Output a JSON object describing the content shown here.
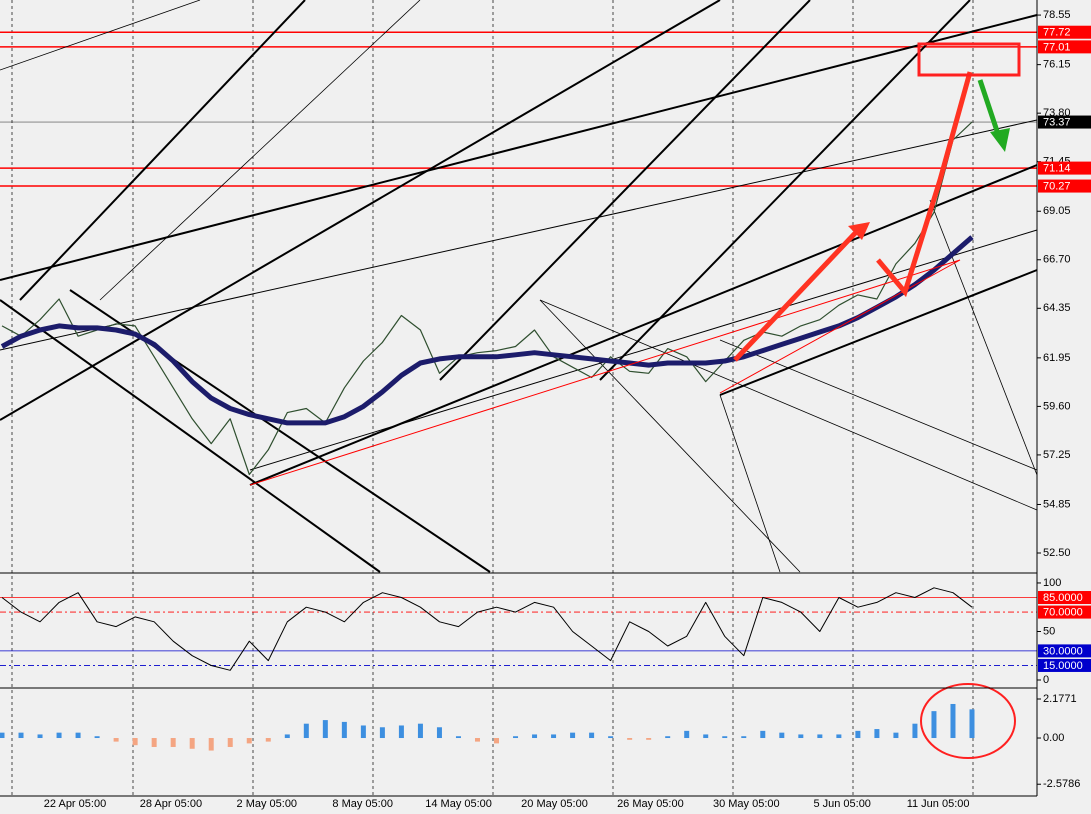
{
  "chart_data": [
    {
      "type": "line",
      "ylim": [
        51.58,
        79.28
      ],
      "yticks": [
        78.55,
        76.15,
        {
          "value": 73.8,
          "label": "73.80"
        },
        71.45,
        69.05,
        {
          "value": 66.7,
          "label": "66.70"
        },
        64.35,
        61.95,
        {
          "value": 59.6,
          "label": "59.60"
        },
        57.25,
        54.85,
        {
          "value": 52.5,
          "label": "52.50"
        }
      ],
      "levels": [
        {
          "value": 77.72,
          "color": "#ff0000"
        },
        {
          "value": 77.01,
          "color": "#ff0000"
        },
        {
          "value": 73.37,
          "color": "#000000"
        },
        {
          "value": 71.14,
          "color": "#ff0000"
        },
        {
          "value": 70.27,
          "color": "#ff0000"
        }
      ],
      "series": [
        {
          "color": "#2f4f2f",
          "width": 1.2,
          "values": [
            63.5,
            63.0,
            63.8,
            64.8,
            63.0,
            63.3,
            63.6,
            63.5,
            62.0,
            60.5,
            59.0,
            57.8,
            59.0,
            56.3,
            57.5,
            59.3,
            59.5,
            58.8,
            60.5,
            61.8,
            62.7,
            64.0,
            63.3,
            61.2,
            62.0,
            62.2,
            62.3,
            62.5,
            63.3,
            62.0,
            61.5,
            61.0,
            62.0,
            61.3,
            61.2,
            62.4,
            62.0,
            60.8,
            61.8,
            62.8,
            63.2,
            63.0,
            63.5,
            63.8,
            64.5,
            65.0,
            64.8,
            66.5,
            67.5,
            69.0,
            72.5,
            73.37
          ]
        },
        {
          "color": "#1c1c6b",
          "width": 5,
          "values": [
            62.5,
            63,
            63.3,
            63.5,
            63.4,
            63.4,
            63.3,
            63.1,
            62.6,
            61.8,
            60.8,
            60.0,
            59.5,
            59.2,
            59.0,
            58.8,
            58.8,
            58.8,
            59.1,
            59.6,
            60.3,
            61.1,
            61.7,
            61.9,
            62.0,
            62.0,
            62.0,
            62.1,
            62.2,
            62.1,
            62.0,
            61.9,
            61.8,
            61.7,
            61.6,
            61.7,
            61.7,
            61.7,
            61.8,
            62.0,
            62.3,
            62.6,
            62.9,
            63.2,
            63.5,
            63.9,
            64.4,
            64.9,
            65.5,
            66.2,
            67.0,
            67.8
          ]
        }
      ]
    },
    {
      "type": "line",
      "ylim": [
        -7.2,
        108.2
      ],
      "yticks": [
        100,
        50,
        0
      ],
      "levels": [
        {
          "value": 85,
          "label": "85.0000",
          "color": "#ff0000"
        },
        {
          "value": 70,
          "label": "70.0000",
          "color": "#ff0000"
        },
        {
          "value": 30,
          "label": "30.0000",
          "color": "#0000cc"
        },
        {
          "value": 15,
          "label": "15.0000",
          "color": "#0000cc"
        }
      ],
      "series": [
        {
          "color": "#000000",
          "width": 1,
          "values": [
            85,
            70,
            60,
            80,
            90,
            60,
            55,
            65,
            60,
            40,
            25,
            15,
            10,
            40,
            20,
            60,
            75,
            70,
            60,
            80,
            90,
            85,
            75,
            60,
            55,
            70,
            75,
            70,
            80,
            75,
            50,
            35,
            20,
            60,
            50,
            35,
            45,
            80,
            45,
            25,
            85,
            80,
            70,
            50,
            85,
            75,
            80,
            90,
            85,
            95,
            90,
            75
          ]
        }
      ]
    },
    {
      "type": "bar",
      "ylim": [
        -3.18,
        2.68
      ],
      "yticks": [
        2.1771,
        {
          "value": 0,
          "label": "0.00"
        },
        -2.5786
      ],
      "colors": [
        "#3d8fe0",
        "#f4a582"
      ],
      "values": [
        0.3,
        0.3,
        0.2,
        0.3,
        0.3,
        0.1,
        -0.2,
        -0.4,
        -0.5,
        -0.5,
        -0.6,
        -0.7,
        -0.5,
        -0.3,
        -0.2,
        0.2,
        0.8,
        1.0,
        0.9,
        0.7,
        0.6,
        0.7,
        0.8,
        0.6,
        0.1,
        -0.2,
        -0.3,
        0.1,
        0.2,
        0.2,
        0.3,
        0.3,
        0.1,
        -0.1,
        -0.1,
        0.1,
        0.4,
        0.2,
        0.1,
        0.1,
        0.4,
        0.3,
        0.2,
        0.2,
        0.2,
        0.4,
        0.5,
        0.3,
        0.8,
        1.5,
        1.9,
        1.6
      ],
      "x_labels": [
        "22 Apr 05:00",
        "28 Apr 05:00",
        "2 May 05:00",
        "8 May 05:00",
        "14 May 05:00",
        "20 May 05:00",
        "26 May 05:00",
        "30 May 05:00",
        "5 Jun 05:00",
        "11 Jun 05:00"
      ]
    }
  ]
}
